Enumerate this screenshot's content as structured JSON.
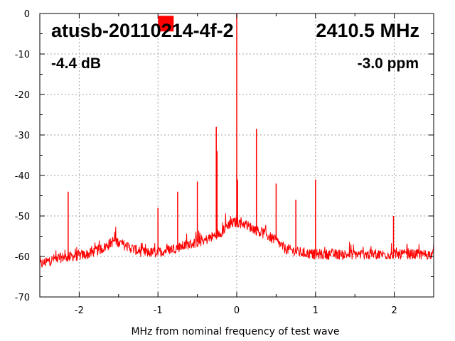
{
  "chart_data": {
    "type": "line",
    "title": "atusb-20110214-4f-2",
    "frequency_label": "2410.5 MHz",
    "level_label": "-4.4 dB",
    "ppm_label": "-3.0 ppm",
    "xlabel": "MHz from nominal frequency of test wave",
    "ylabel": "",
    "xlim": [
      -2.5,
      2.5
    ],
    "ylim": [
      -70,
      0
    ],
    "x_ticks": [
      -2,
      -1,
      0,
      1,
      2
    ],
    "y_ticks": [
      0,
      -10,
      -20,
      -30,
      -40,
      -50,
      -60,
      -70
    ],
    "grid": true,
    "line_color": "#ff0000",
    "marker": {
      "x": -0.9,
      "y": -2.5,
      "color": "#ff0000"
    },
    "series": [
      {
        "noise_floor": {
          "x": [
            -2.5,
            -2.3,
            -2.1,
            -1.9,
            -1.7,
            -1.55,
            -1.4,
            -1.2,
            -1.0,
            -0.8,
            -0.6,
            -0.4,
            -0.2,
            -0.1,
            0.0,
            0.1,
            0.2,
            0.3,
            0.4,
            0.5,
            0.6,
            0.8,
            1.0,
            1.2,
            1.5,
            1.8,
            2.0,
            2.2,
            2.5
          ],
          "y": [
            -62,
            -60.5,
            -60,
            -59.5,
            -58,
            -56,
            -57.5,
            -59,
            -59,
            -58,
            -57,
            -56,
            -54,
            -52,
            -51.5,
            -52,
            -53,
            -54,
            -55,
            -56,
            -58,
            -59,
            -59.5,
            -59.5,
            -59.5,
            -59.5,
            -59.5,
            -59.5,
            -59.5
          ]
        },
        "spikes": [
          {
            "x": -2.14,
            "y": -44
          },
          {
            "x": -1.0,
            "y": -48
          },
          {
            "x": -0.75,
            "y": -44
          },
          {
            "x": -0.5,
            "y": -41.5
          },
          {
            "x": -0.26,
            "y": -28
          },
          {
            "x": -0.25,
            "y": -34
          },
          {
            "x": 0.0,
            "y": 0
          },
          {
            "x": 0.01,
            "y": -41
          },
          {
            "x": 0.25,
            "y": -28.5
          },
          {
            "x": 0.5,
            "y": -42
          },
          {
            "x": 0.75,
            "y": -46
          },
          {
            "x": 1.0,
            "y": -41
          },
          {
            "x": 1.99,
            "y": -50
          }
        ]
      }
    ]
  }
}
